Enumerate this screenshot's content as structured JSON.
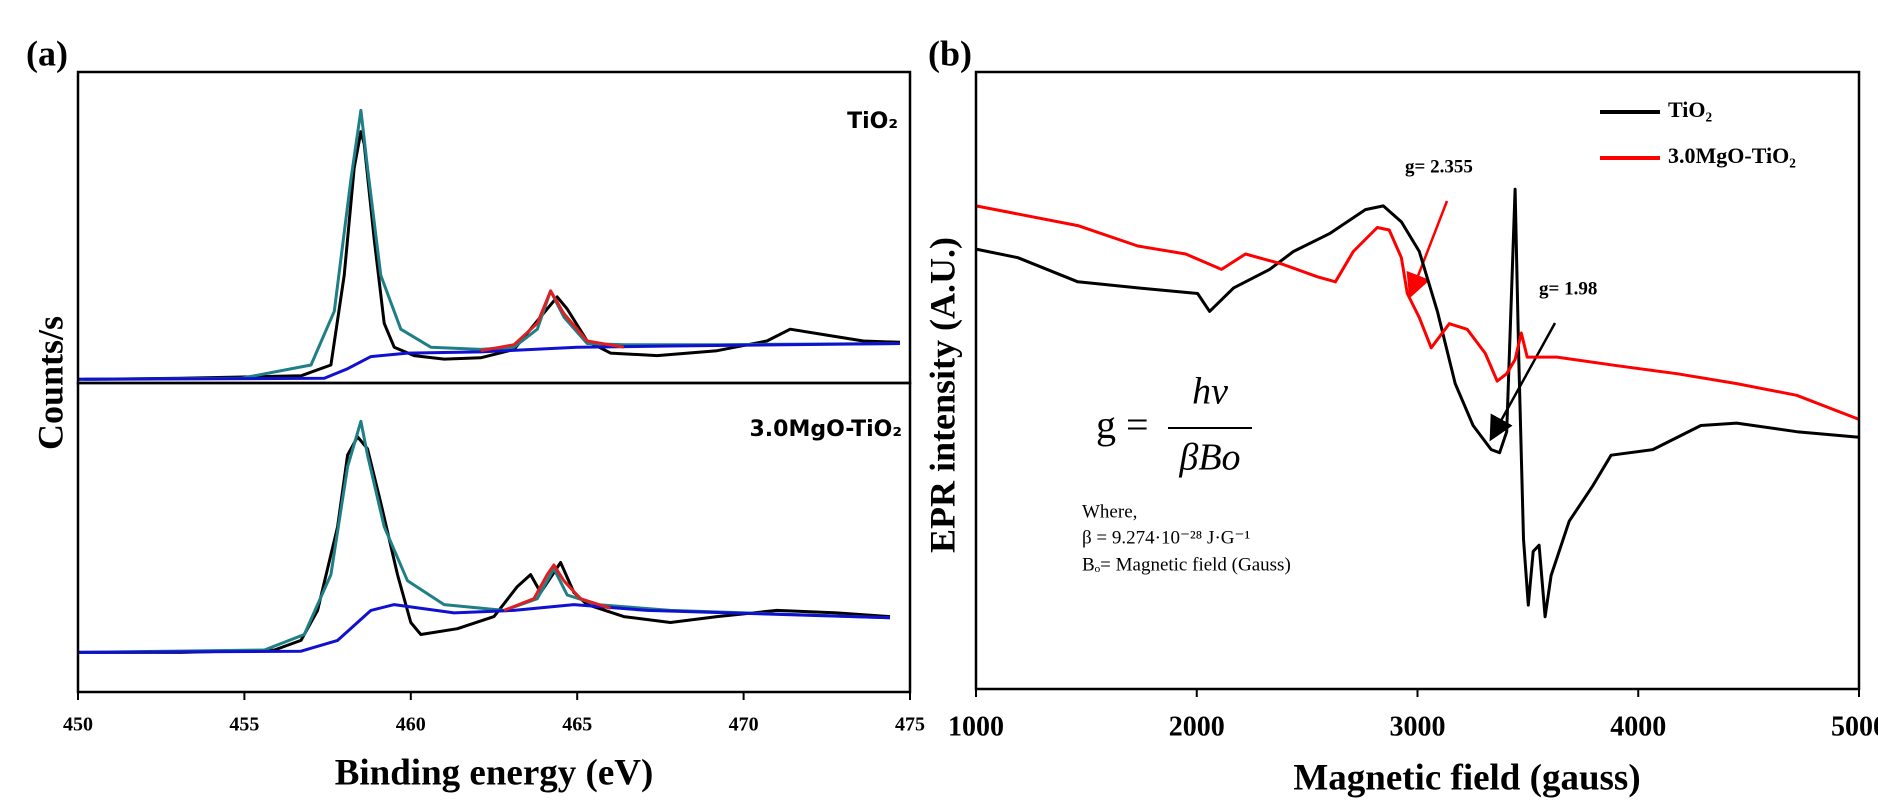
{
  "chart_data": [
    {
      "type": "line",
      "panel_label": "(a)",
      "ylabel": "Counts/s",
      "annotation": "TiO₂",
      "xlim": [
        450,
        475
      ],
      "ylim": [
        0,
        100
      ],
      "series": [
        {
          "color": "#000000",
          "x": [
            450.2,
            453.1,
            456.7,
            457.6,
            458.0,
            458.3,
            458.5,
            458.6,
            458.9,
            459.2,
            459.5,
            460.1,
            461.0,
            462.1,
            463.1,
            463.8,
            464.4,
            464.7,
            465.3,
            466.0,
            467.4,
            469.2,
            470.7,
            471.4,
            472.5,
            473.6,
            474.7
          ],
          "values": [
            1.2,
            1.5,
            2.3,
            5.8,
            34.6,
            69.2,
            80.8,
            76.9,
            46.2,
            19.2,
            11.5,
            8.8,
            7.7,
            8.1,
            10.8,
            20,
            27.7,
            23.8,
            13.5,
            9.6,
            8.8,
            10.4,
            13.5,
            17.3,
            15.4,
            13.5,
            13.1
          ]
        },
        {
          "color": "#1f7f86",
          "x": [
            450,
            454.9,
            457.0,
            457.7,
            458.2,
            458.5,
            458.7,
            459.1,
            459.7,
            460.6,
            462.1,
            463.1,
            463.8,
            464.2,
            464.6,
            465.3,
            466.4,
            469.2,
            474.7
          ],
          "values": [
            1.2,
            1.5,
            5.8,
            23.1,
            65.4,
            87.7,
            69.2,
            34.6,
            17.3,
            11.5,
            10.8,
            11.5,
            17.3,
            29.6,
            21.2,
            12.7,
            12.3,
            12.3,
            12.7
          ]
        },
        {
          "color": "#1010d0",
          "x": [
            450,
            457.4,
            458.1,
            458.8,
            459.9,
            462.1,
            465.0,
            467.8,
            474.7
          ],
          "values": [
            1.2,
            1.5,
            4.6,
            8.5,
            9.6,
            10.0,
            11.5,
            11.9,
            12.7
          ]
        },
        {
          "color": "#e02020",
          "x": [
            462.1,
            463.1,
            463.8,
            464.2,
            464.6,
            465.3,
            466.4
          ],
          "values": [
            10.4,
            12.3,
            19.2,
            29.6,
            22.3,
            13.5,
            11.5
          ]
        }
      ]
    },
    {
      "type": "line",
      "annotation": "3.0MgO-TiO₂",
      "xlabel": "Binding energy (eV)",
      "xlim": [
        450,
        475
      ],
      "xticks": [
        450,
        455,
        460,
        465,
        470,
        475
      ],
      "ylim": [
        0,
        100
      ],
      "series": [
        {
          "color": "#000000",
          "x": [
            450,
            453.1,
            455.9,
            456.7,
            457.2,
            457.8,
            458.1,
            458.4,
            458.7,
            459.1,
            459.6,
            460.0,
            460.3,
            461.4,
            462.5,
            463.2,
            463.6,
            463.9,
            464.5,
            464.9,
            465.3,
            466.4,
            467.8,
            469.2,
            471.0,
            472.8,
            474.4
          ],
          "values": [
            12.8,
            12.8,
            13.6,
            16.7,
            26.4,
            53.5,
            76.7,
            82.6,
            78.7,
            61.2,
            38.0,
            22.5,
            18.6,
            20.5,
            24.4,
            34.1,
            38.0,
            32.2,
            41.9,
            32.2,
            28.3,
            24.4,
            22.5,
            24.4,
            26.4,
            25.6,
            24.4
          ]
        },
        {
          "color": "#1f7f86",
          "x": [
            450,
            455.6,
            456.8,
            457.6,
            458.1,
            458.5,
            458.7,
            459.2,
            459.9,
            461.0,
            462.8,
            463.8,
            464.3,
            464.7,
            465.6,
            467.8,
            474.4
          ],
          "values": [
            12.8,
            13.6,
            18.6,
            38.0,
            72.9,
            87.6,
            76.7,
            53.5,
            36.0,
            28.3,
            26.4,
            30.2,
            39.9,
            31.4,
            28.3,
            26.4,
            24.0
          ]
        },
        {
          "color": "#1010d0",
          "x": [
            450,
            456.7,
            457.8,
            458.8,
            459.5,
            461.3,
            463.1,
            464.9,
            467.1,
            474.4
          ],
          "values": [
            12.8,
            13.2,
            16.7,
            26.4,
            28.3,
            25.6,
            26.4,
            28.3,
            26.4,
            24.0
          ]
        },
        {
          "color": "#e02020",
          "x": [
            462.8,
            463.7,
            464.1,
            464.3,
            464.6,
            465.1,
            466.0
          ],
          "values": [
            26.4,
            30.2,
            38.0,
            41.1,
            36.0,
            30.2,
            27.1
          ]
        }
      ]
    },
    {
      "type": "line",
      "panel_label": "(b)",
      "xlabel": "Magnetic field (gauss)",
      "ylabel": "EPR intensity (A.U.)",
      "xlim": [
        1000,
        5000
      ],
      "xticks": [
        1000,
        2000,
        3000,
        4000,
        5000
      ],
      "ylim": [
        0,
        100
      ],
      "legend": "upper right",
      "series": [
        {
          "name": "TiO₂",
          "color": "#000000",
          "x": [
            1000,
            1190,
            1461,
            1733,
            2004,
            2058,
            2167,
            2330,
            2438,
            2601,
            2764,
            2845,
            2927,
            3008,
            3090,
            3171,
            3252,
            3334,
            3372,
            3404,
            3442,
            3459,
            3480,
            3502,
            3524,
            3551,
            3578,
            3605,
            3687,
            3795,
            3877,
            4066,
            4284,
            4446,
            4718,
            5000
          ],
          "values": [
            71.3,
            69.9,
            66.0,
            65.0,
            64.1,
            61.2,
            65.0,
            68.0,
            70.9,
            73.8,
            77.7,
            78.3,
            75.7,
            70.9,
            61.2,
            49.5,
            42.7,
            38.8,
            38.3,
            41.7,
            81.0,
            53.4,
            24.3,
            13.6,
            22.3,
            23.3,
            11.7,
            18.4,
            27.2,
            33.0,
            37.9,
            38.8,
            42.7,
            43.1,
            41.7,
            40.8
          ]
        },
        {
          "name": "3.0MgO-TiO₂",
          "color": "#ff0000",
          "x": [
            1000,
            1461,
            1733,
            1950,
            2112,
            2221,
            2384,
            2547,
            2628,
            2709,
            2818,
            2872,
            2927,
            2954,
            3008,
            3062,
            3144,
            3225,
            3307,
            3361,
            3404,
            3442,
            3470,
            3497,
            3632,
            3904,
            4175,
            4446,
            4718,
            5000
          ],
          "values": [
            78.3,
            75.1,
            71.8,
            70.5,
            68.0,
            70.5,
            68.9,
            66.8,
            66.0,
            70.9,
            74.8,
            74.4,
            69.9,
            64.1,
            60.2,
            55.3,
            59.2,
            58.3,
            54.4,
            49.9,
            51.1,
            53.4,
            57.7,
            53.8,
            53.8,
            52.4,
            51.1,
            49.5,
            47.6,
            43.7
          ]
        }
      ],
      "annotations": [
        {
          "text": "g= 2.355",
          "color": "#ff0000"
        },
        {
          "text": "g= 1.98",
          "color": "#000000"
        }
      ],
      "formula": {
        "lhs": "g =",
        "numerator": "hv",
        "denominator": "βBo"
      },
      "notes": [
        "Where,",
        "β = 9.274·10⁻²⁸ J·G⁻¹",
        "Bₒ= Magnetic field (Gauss)"
      ]
    }
  ]
}
